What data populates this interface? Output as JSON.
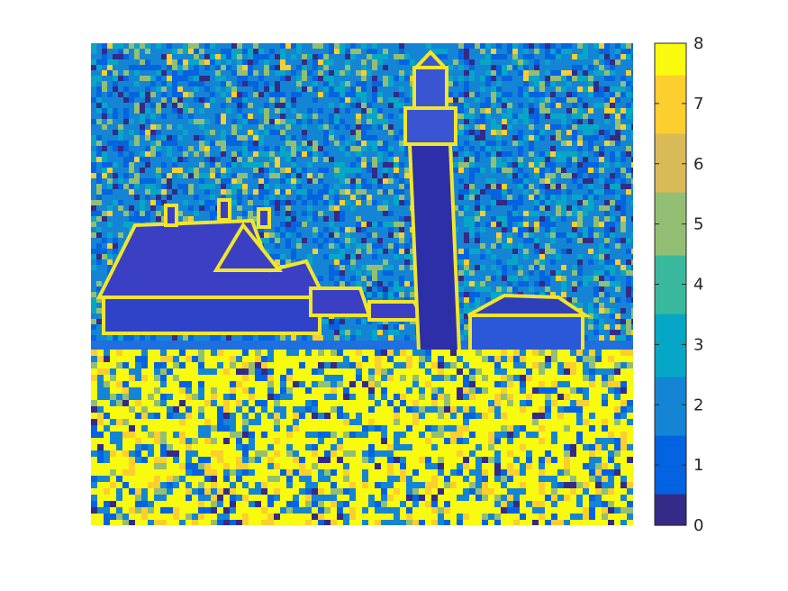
{
  "figure": {
    "background": "#ffffff"
  },
  "chart_data": {
    "type": "heatmap",
    "title": "",
    "xlabel": "",
    "ylabel": "",
    "description_visible": "image rendered with a parula-style colormap; lighthouse and houses on a rocky shore",
    "axes": {
      "x_ticks_visible": false,
      "y_ticks_visible": false,
      "grid": false
    },
    "colorbar": {
      "location": "right",
      "clim": [
        0,
        8
      ],
      "ticks": [
        0,
        1,
        2,
        3,
        4,
        5,
        6,
        7,
        8
      ],
      "tick_labels": [
        "0",
        "1",
        "2",
        "3",
        "4",
        "5",
        "6",
        "7",
        "8"
      ],
      "colormap": "parula",
      "colormap_stops": [
        "#352a87",
        "#0363e1",
        "#1485d4",
        "#06a7c6",
        "#38b99e",
        "#92bf73",
        "#d9ba56",
        "#fcce2e",
        "#f9fb0e"
      ]
    },
    "value_range": [
      0,
      8
    ],
    "dominant_values": {
      "sky_background": 2,
      "edges_and_rocks": 8,
      "lighthouse_and_roofs": 0
    }
  }
}
